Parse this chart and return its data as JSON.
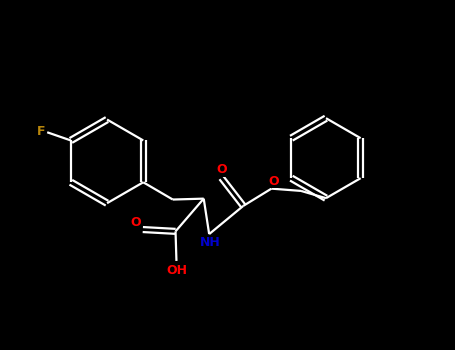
{
  "background_color": "#000000",
  "bond_color": "#ffffff",
  "atom_colors": {
    "F": "#b8860b",
    "O": "#ff0000",
    "N": "#0000cd",
    "H": "#ffffff",
    "C": "#ffffff"
  },
  "figsize": [
    4.55,
    3.5
  ],
  "dpi": 100,
  "lw": 1.6,
  "fontsize": 9
}
